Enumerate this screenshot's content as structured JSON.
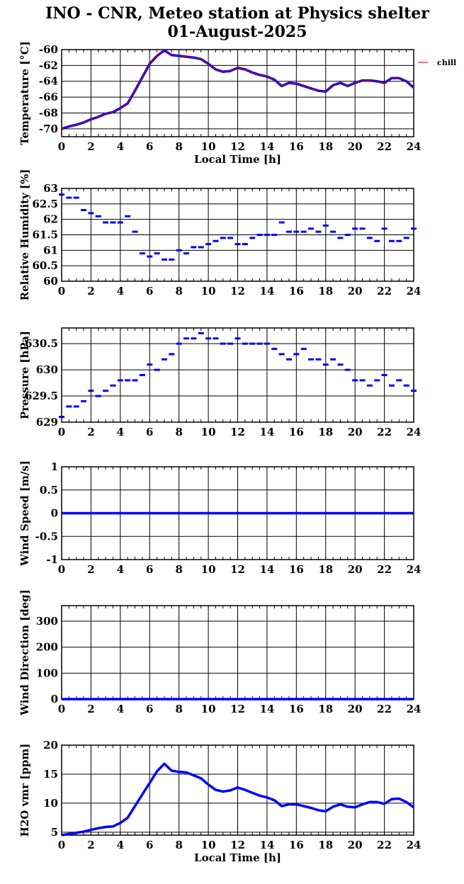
{
  "title_line1": "INO - CNR, Meteo station at Physics shelter",
  "title_line2": "01-August-2025",
  "colors": {
    "data": "#0000ff",
    "chill": "#cc0000",
    "grid": "#000000"
  },
  "chart_data": [
    {
      "type": "line",
      "ylabel": "Temperature [°C]",
      "xlabel": "Local Time [h]",
      "xlim": [
        0,
        24
      ],
      "ylim": [
        -71,
        -60
      ],
      "yticks": [
        -70,
        -68,
        -66,
        -64,
        -62,
        -60
      ],
      "grid": true,
      "legend": "right",
      "series": [
        {
          "name": "",
          "x": [
            0,
            0.5,
            1,
            1.5,
            2,
            2.5,
            3,
            3.5,
            4,
            4.5,
            5,
            5.5,
            6,
            6.5,
            7,
            7.5,
            8,
            8.5,
            9,
            9.5,
            10,
            10.5,
            11,
            11.5,
            12,
            12.5,
            13,
            13.5,
            14,
            14.5,
            15,
            15.5,
            16,
            16.5,
            17,
            17.5,
            18,
            18.5,
            19,
            19.5,
            20,
            20.5,
            21,
            21.5,
            22,
            22.5,
            23,
            23.5,
            24
          ],
          "y": [
            -70.0,
            -69.7,
            -69.5,
            -69.2,
            -68.8,
            -68.5,
            -68.1,
            -67.9,
            -67.4,
            -66.8,
            -65.2,
            -63.5,
            -61.8,
            -60.8,
            -60.1,
            -60.7,
            -60.8,
            -60.9,
            -61.0,
            -61.2,
            -61.8,
            -62.5,
            -62.8,
            -62.7,
            -62.3,
            -62.5,
            -62.9,
            -63.2,
            -63.4,
            -63.8,
            -64.6,
            -64.2,
            -64.3,
            -64.6,
            -64.9,
            -65.2,
            -65.3,
            -64.5,
            -64.2,
            -64.6,
            -64.2,
            -63.9,
            -63.9,
            -64.0,
            -64.2,
            -63.6,
            -63.6,
            -64.0,
            -64.8
          ]
        }
      ],
      "overlay_series": {
        "name": "chill",
        "x": [
          0,
          0.5,
          1,
          1.5,
          2,
          2.5,
          3,
          3.5,
          4,
          4.5,
          5,
          5.5,
          6,
          6.5,
          7,
          7.5,
          8,
          8.5,
          9,
          9.5,
          10,
          10.5,
          11,
          11.5,
          12,
          12.5,
          13,
          13.5,
          14,
          14.5,
          15,
          15.5,
          16,
          16.5,
          17,
          17.5,
          18,
          18.5,
          19,
          19.5,
          20,
          20.5,
          21,
          21.5,
          22,
          22.5,
          23,
          23.5,
          24
        ],
        "y": [
          -70.0,
          -69.7,
          -69.5,
          -69.2,
          -68.8,
          -68.5,
          -68.1,
          -67.9,
          -67.4,
          -66.8,
          -65.2,
          -63.5,
          -61.8,
          -60.8,
          -60.1,
          -60.7,
          -60.8,
          -60.9,
          -61.0,
          -61.2,
          -61.8,
          -62.5,
          -62.8,
          -62.7,
          -62.3,
          -62.5,
          -62.9,
          -63.2,
          -63.4,
          -63.8,
          -64.6,
          -64.2,
          -64.3,
          -64.6,
          -64.9,
          -65.2,
          -65.3,
          -64.5,
          -64.2,
          -64.6,
          -64.2,
          -63.9,
          -63.9,
          -64.0,
          -64.2,
          -63.6,
          -63.6,
          -64.0,
          -64.8
        ]
      }
    },
    {
      "type": "scatter",
      "ylabel": "Relative Humidity [%]",
      "xlim": [
        0,
        24
      ],
      "ylim": [
        60,
        63
      ],
      "yticks": [
        60,
        60.5,
        61,
        61.5,
        62,
        62.5,
        63
      ],
      "grid": true,
      "series": [
        {
          "name": "",
          "x": [
            0,
            0.5,
            1,
            1.5,
            2,
            2.5,
            3,
            3.5,
            4,
            4.5,
            5,
            5.5,
            6,
            6.5,
            7,
            7.5,
            8,
            8.5,
            9,
            9.5,
            10,
            10.5,
            11,
            11.5,
            12,
            12.5,
            13,
            13.5,
            14,
            14.5,
            15,
            15.5,
            16,
            16.5,
            17,
            17.5,
            18,
            18.5,
            19,
            19.5,
            20,
            20.5,
            21,
            21.5,
            22,
            22.5,
            23,
            23.5,
            24
          ],
          "y": [
            62.8,
            62.7,
            62.7,
            62.3,
            62.2,
            62.1,
            61.9,
            61.9,
            61.9,
            62.1,
            61.6,
            60.9,
            60.8,
            60.9,
            60.7,
            60.7,
            61.0,
            60.9,
            61.1,
            61.1,
            61.2,
            61.3,
            61.4,
            61.4,
            61.2,
            61.2,
            61.4,
            61.5,
            61.5,
            61.5,
            61.9,
            61.6,
            61.6,
            61.6,
            61.7,
            61.6,
            61.8,
            61.6,
            61.4,
            61.5,
            61.7,
            61.7,
            61.4,
            61.3,
            61.7,
            61.3,
            61.3,
            61.4,
            61.7
          ]
        }
      ]
    },
    {
      "type": "scatter",
      "ylabel": "Pressure [hPa]",
      "xlim": [
        0,
        24
      ],
      "ylim": [
        629,
        630.8
      ],
      "yticks": [
        629,
        629.5,
        630,
        630.5
      ],
      "grid": true,
      "series": [
        {
          "name": "",
          "x": [
            0,
            0.5,
            1,
            1.5,
            2,
            2.5,
            3,
            3.5,
            4,
            4.5,
            5,
            5.5,
            6,
            6.5,
            7,
            7.5,
            8,
            8.5,
            9,
            9.5,
            10,
            10.5,
            11,
            11.5,
            12,
            12.5,
            13,
            13.5,
            14,
            14.5,
            15,
            15.5,
            16,
            16.5,
            17,
            17.5,
            18,
            18.5,
            19,
            19.5,
            20,
            20.5,
            21,
            21.5,
            22,
            22.5,
            23,
            23.5,
            24
          ],
          "y": [
            629.1,
            629.3,
            629.3,
            629.4,
            629.6,
            629.5,
            629.6,
            629.7,
            629.8,
            629.8,
            629.8,
            629.9,
            630.1,
            630.0,
            630.2,
            630.3,
            630.5,
            630.6,
            630.6,
            630.7,
            630.6,
            630.6,
            630.5,
            630.5,
            630.6,
            630.5,
            630.5,
            630.5,
            630.5,
            630.4,
            630.3,
            630.2,
            630.3,
            630.4,
            630.2,
            630.2,
            630.1,
            630.2,
            630.1,
            630.0,
            629.8,
            629.8,
            629.7,
            629.8,
            629.9,
            629.7,
            629.8,
            629.7,
            629.6
          ]
        }
      ]
    },
    {
      "type": "line",
      "ylabel": "Wind Speed [m/s]",
      "xlim": [
        0,
        24
      ],
      "ylim": [
        -1,
        1
      ],
      "yticks": [
        -1,
        -0.5,
        0,
        0.5,
        1
      ],
      "grid": true,
      "series": [
        {
          "name": "",
          "x": [
            0,
            24
          ],
          "y": [
            0,
            0
          ]
        }
      ]
    },
    {
      "type": "line",
      "ylabel": "Wind Direction [deg]",
      "xlim": [
        0,
        24
      ],
      "ylim": [
        0,
        360
      ],
      "yticks": [
        0,
        100,
        200,
        300
      ],
      "grid": true,
      "series": [
        {
          "name": "",
          "x": [
            0,
            24
          ],
          "y": [
            0,
            0
          ]
        }
      ]
    },
    {
      "type": "line",
      "ylabel": "H2O vmr [ppm]",
      "xlabel": "Local Time [h]",
      "xlim": [
        0,
        24
      ],
      "ylim": [
        4.5,
        20
      ],
      "yticks": [
        5,
        10,
        15,
        20
      ],
      "grid": true,
      "series": [
        {
          "name": "",
          "x": [
            0,
            0.5,
            1,
            1.5,
            2,
            2.5,
            3,
            3.5,
            4,
            4.5,
            5,
            5.5,
            6,
            6.5,
            7,
            7.5,
            8,
            8.5,
            9,
            9.5,
            10,
            10.5,
            11,
            11.5,
            12,
            12.5,
            13,
            13.5,
            14,
            14.5,
            15,
            15.5,
            16,
            16.5,
            17,
            17.5,
            18,
            18.5,
            19,
            19.5,
            20,
            20.5,
            21,
            21.5,
            22,
            22.5,
            23,
            23.5,
            24
          ],
          "y": [
            4.5,
            4.7,
            4.9,
            5.1,
            5.4,
            5.7,
            5.9,
            6.0,
            6.6,
            7.5,
            9.5,
            11.5,
            13.5,
            15.5,
            16.8,
            15.6,
            15.4,
            15.3,
            14.8,
            14.3,
            13.2,
            12.3,
            12.0,
            12.2,
            12.7,
            12.3,
            11.8,
            11.3,
            11.0,
            10.5,
            9.5,
            9.8,
            9.8,
            9.5,
            9.2,
            8.8,
            8.6,
            9.4,
            9.8,
            9.4,
            9.3,
            9.8,
            10.2,
            10.2,
            9.9,
            10.7,
            10.8,
            10.2,
            9.3
          ]
        }
      ]
    }
  ],
  "xticks": [
    0,
    2,
    4,
    6,
    8,
    10,
    12,
    14,
    16,
    18,
    20,
    22,
    24
  ]
}
